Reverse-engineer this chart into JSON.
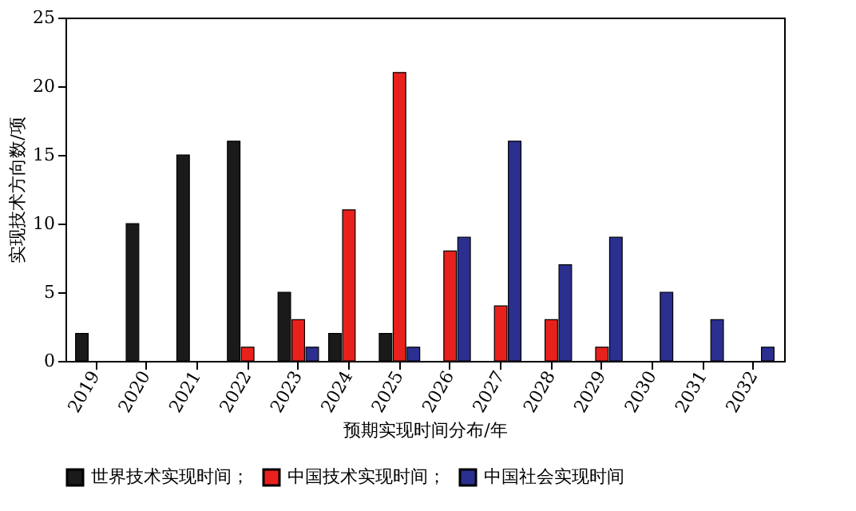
{
  "chart_data": {
    "type": "bar",
    "xlabel": "预期实现时间分布/年",
    "ylabel": "实现技术方向数/项",
    "categories": [
      "2019",
      "2020",
      "2021",
      "2022",
      "2023",
      "2024",
      "2025",
      "2026",
      "2027",
      "2028",
      "2029",
      "2030",
      "2031",
      "2032"
    ],
    "series": [
      {
        "name": "世界技术实现时间；",
        "color": "#1a1a1a",
        "values": [
          2,
          10,
          15,
          16,
          5,
          2,
          2,
          null,
          null,
          null,
          null,
          null,
          null,
          null
        ]
      },
      {
        "name": "中国技术实现时间；",
        "color": "#e8211d",
        "values": [
          null,
          null,
          null,
          1,
          3,
          11,
          21,
          8,
          4,
          3,
          1,
          null,
          null,
          null
        ]
      },
      {
        "name": "中国社会实现时间",
        "color": "#2b2f8f",
        "values": [
          null,
          null,
          null,
          null,
          1,
          null,
          1,
          9,
          16,
          7,
          9,
          5,
          3,
          1
        ]
      }
    ],
    "ylim": [
      0,
      25
    ],
    "yticks": [
      0,
      5,
      10,
      15,
      20,
      25
    ],
    "grid": false,
    "legend": "bottom"
  }
}
